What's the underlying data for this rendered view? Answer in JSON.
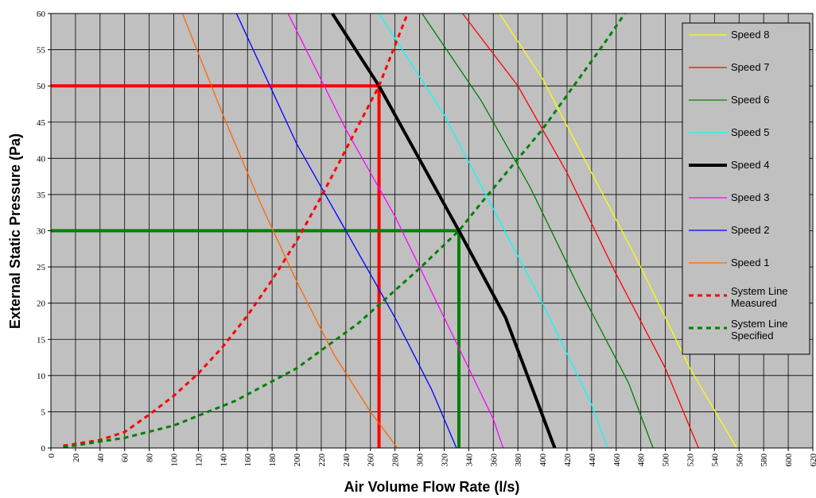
{
  "chart_data": {
    "type": "line",
    "title": "",
    "xlabel": "Air Volume Flow Rate (l/s)",
    "ylabel": "External Static Pressure (Pa)",
    "xlim": [
      0,
      620
    ],
    "ylim": [
      0,
      60
    ],
    "x_ticks": [
      0,
      20,
      40,
      60,
      80,
      100,
      120,
      140,
      160,
      180,
      200,
      220,
      240,
      260,
      280,
      300,
      320,
      340,
      360,
      380,
      400,
      420,
      440,
      460,
      480,
      500,
      520,
      540,
      560,
      580,
      600,
      620
    ],
    "y_ticks": [
      0,
      5,
      10,
      15,
      20,
      25,
      30,
      35,
      40,
      45,
      50,
      55,
      60
    ],
    "grid": true,
    "plot_background": "#c0c0c0",
    "legend_position": "right",
    "series": [
      {
        "name": "Speed 8",
        "color": "#ffff00",
        "width": 1.3,
        "dash": "solid",
        "points": [
          [
            365,
            60
          ],
          [
            400,
            51
          ],
          [
            440,
            38
          ],
          [
            480,
            25
          ],
          [
            520,
            11
          ],
          [
            558,
            0
          ]
        ]
      },
      {
        "name": "Speed 7",
        "color": "#ff0000",
        "width": 1.3,
        "dash": "solid",
        "points": [
          [
            335,
            60
          ],
          [
            380,
            50
          ],
          [
            420,
            38
          ],
          [
            460,
            24
          ],
          [
            500,
            11
          ],
          [
            527,
            0
          ]
        ]
      },
      {
        "name": "Speed 6",
        "color": "#008000",
        "width": 1.3,
        "dash": "solid",
        "points": [
          [
            302,
            60
          ],
          [
            350,
            48
          ],
          [
            390,
            36
          ],
          [
            430,
            22
          ],
          [
            470,
            9
          ],
          [
            490,
            0
          ]
        ]
      },
      {
        "name": "Speed 5",
        "color": "#00ffff",
        "width": 1.3,
        "dash": "solid",
        "points": [
          [
            267,
            60
          ],
          [
            320,
            46
          ],
          [
            360,
            33
          ],
          [
            400,
            20
          ],
          [
            440,
            6
          ],
          [
            453,
            0
          ]
        ]
      },
      {
        "name": "Speed 4",
        "color": "#000000",
        "width": 4,
        "dash": "solid",
        "points": [
          [
            229,
            60
          ],
          [
            267,
            50
          ],
          [
            332,
            30
          ],
          [
            370,
            18
          ],
          [
            410,
            0
          ]
        ]
      },
      {
        "name": "Speed 3",
        "color": "#ff00ff",
        "width": 1.3,
        "dash": "solid",
        "points": [
          [
            193,
            60
          ],
          [
            240,
            44
          ],
          [
            280,
            32
          ],
          [
            320,
            18
          ],
          [
            360,
            4
          ],
          [
            368,
            0
          ]
        ]
      },
      {
        "name": "Speed 2",
        "color": "#0000ff",
        "width": 1.3,
        "dash": "solid",
        "points": [
          [
            151,
            60
          ],
          [
            200,
            42
          ],
          [
            240,
            30
          ],
          [
            280,
            18
          ],
          [
            310,
            8
          ],
          [
            330,
            0
          ]
        ]
      },
      {
        "name": "Speed 1",
        "color": "#ff6600",
        "width": 1.3,
        "dash": "solid",
        "points": [
          [
            107,
            60
          ],
          [
            140,
            46
          ],
          [
            170,
            34
          ],
          [
            200,
            23
          ],
          [
            230,
            13
          ],
          [
            260,
            5
          ],
          [
            282,
            0
          ]
        ]
      },
      {
        "name": "System Line\nMeasured",
        "color": "#ff0000",
        "width": 3,
        "dash": "dash",
        "points": [
          [
            10,
            0.3
          ],
          [
            40,
            1.1
          ],
          [
            60,
            2.2
          ],
          [
            80,
            4.6
          ],
          [
            100,
            7.2
          ],
          [
            120,
            10.3
          ],
          [
            140,
            14
          ],
          [
            160,
            18.3
          ],
          [
            180,
            23.2
          ],
          [
            200,
            28.6
          ],
          [
            220,
            34.7
          ],
          [
            240,
            41.2
          ],
          [
            267,
            50
          ],
          [
            290,
            59.9
          ]
        ]
      },
      {
        "name": "System Line\nSpecified",
        "color": "#008000",
        "width": 3,
        "dash": "dash",
        "points": [
          [
            10,
            0.1
          ],
          [
            60,
            1.4
          ],
          [
            100,
            3.1
          ],
          [
            150,
            6.5
          ],
          [
            200,
            11
          ],
          [
            250,
            17.2
          ],
          [
            300,
            24.8
          ],
          [
            332,
            30
          ],
          [
            350,
            33.8
          ],
          [
            400,
            44
          ],
          [
            450,
            55.8
          ],
          [
            467,
            60
          ]
        ]
      }
    ],
    "reference_lines": [
      {
        "color": "#ff0000",
        "width": 4,
        "points": [
          [
            0,
            50
          ],
          [
            267,
            50
          ],
          [
            267,
            0
          ]
        ]
      },
      {
        "color": "#008000",
        "width": 4,
        "points": [
          [
            0,
            30
          ],
          [
            332,
            30
          ],
          [
            332,
            0
          ]
        ]
      }
    ]
  }
}
